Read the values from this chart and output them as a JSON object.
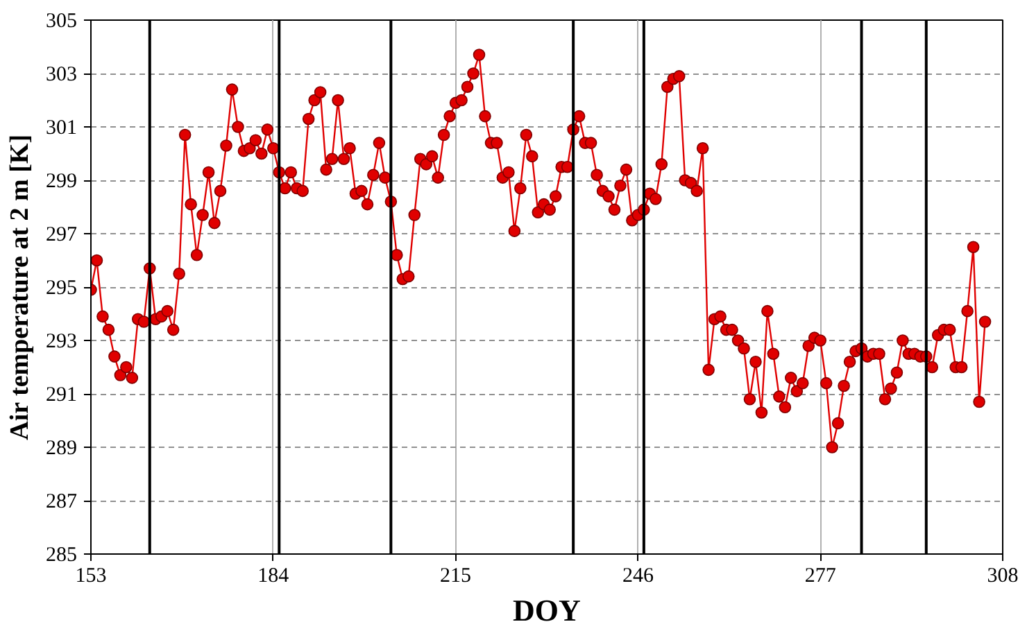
{
  "chart_data": {
    "type": "line",
    "xlabel": "DOY",
    "ylabel": "Air temperature at 2 m [K]",
    "x": [
      153,
      154,
      155,
      156,
      157,
      158,
      159,
      160,
      161,
      162,
      163,
      164,
      165,
      166,
      167,
      168,
      169,
      170,
      171,
      172,
      173,
      174,
      175,
      176,
      177,
      178,
      179,
      180,
      181,
      182,
      183,
      184,
      185,
      186,
      187,
      188,
      189,
      190,
      191,
      192,
      193,
      194,
      195,
      196,
      197,
      198,
      199,
      200,
      201,
      202,
      203,
      204,
      205,
      206,
      207,
      208,
      209,
      210,
      211,
      212,
      213,
      214,
      215,
      216,
      217,
      218,
      219,
      220,
      221,
      222,
      223,
      224,
      225,
      226,
      227,
      228,
      229,
      230,
      231,
      232,
      233,
      234,
      235,
      236,
      237,
      238,
      239,
      240,
      241,
      242,
      243,
      244,
      245,
      246,
      247,
      248,
      249,
      250,
      251,
      252,
      253,
      254,
      255,
      256,
      257,
      258,
      259,
      260,
      261,
      262,
      263,
      264,
      265,
      266,
      267,
      268,
      269,
      270,
      271,
      272,
      273,
      274,
      275,
      276,
      277,
      278,
      279,
      280,
      281,
      282,
      283,
      284,
      285,
      286,
      287,
      288,
      289,
      290,
      291,
      292,
      293,
      294,
      295,
      296,
      297,
      298,
      299,
      300,
      301,
      302,
      303,
      304,
      305
    ],
    "series": [
      {
        "color": "#e00000",
        "values": [
          294.9,
          296.0,
          293.9,
          293.4,
          292.4,
          291.7,
          292.0,
          291.6,
          293.8,
          293.7,
          295.7,
          293.8,
          293.9,
          294.1,
          293.4,
          295.5,
          300.7,
          298.1,
          296.2,
          297.7,
          299.3,
          297.4,
          298.6,
          300.3,
          302.4,
          301.0,
          300.1,
          300.2,
          300.5,
          300.0,
          300.9,
          300.2,
          299.3,
          298.7,
          299.3,
          298.7,
          298.6,
          301.3,
          302.0,
          302.3,
          299.4,
          299.8,
          302.0,
          299.8,
          300.2,
          298.5,
          298.6,
          298.1,
          299.2,
          300.4,
          299.1,
          298.2,
          296.2,
          295.3,
          295.4,
          297.7,
          299.8,
          299.6,
          299.9,
          299.1,
          300.7,
          301.4,
          301.9,
          302.0,
          302.5,
          303.0,
          303.7,
          301.4,
          300.4,
          300.4,
          299.1,
          299.3,
          297.1,
          298.7,
          300.7,
          299.9,
          297.8,
          298.1,
          297.9,
          298.4,
          299.5,
          299.5,
          300.9,
          301.4,
          300.4,
          300.4,
          299.2,
          298.6,
          298.4,
          297.9,
          298.8,
          299.4,
          297.5,
          297.7,
          297.9,
          298.5,
          298.3,
          299.6,
          302.5,
          302.8,
          302.9,
          299.0,
          298.9,
          298.6,
          300.2,
          291.9,
          293.8,
          293.9,
          293.4,
          293.4,
          293.0,
          292.7,
          290.8,
          292.2,
          290.3,
          294.1,
          292.5,
          290.9,
          290.5,
          291.6,
          291.1,
          291.4,
          292.8,
          293.1,
          293.0,
          291.4,
          289.0,
          289.9,
          291.3,
          292.2,
          292.6,
          292.7,
          292.4,
          292.5,
          292.5,
          290.8,
          291.2,
          291.8,
          293.0,
          292.5,
          292.5,
          292.4,
          292.4,
          292.0,
          293.2,
          293.4,
          293.4,
          292.0,
          292.0,
          294.1,
          296.5,
          290.7,
          293.7
        ]
      }
    ],
    "xlim": [
      153,
      308
    ],
    "xticks": [
      153,
      184,
      215,
      246,
      277,
      308
    ],
    "ylim": [
      285,
      305
    ],
    "yticks": [
      285,
      287,
      289,
      291,
      293,
      295,
      297,
      299,
      301,
      303,
      305
    ],
    "ref_lines": [
      {
        "axis": "x",
        "value": 163,
        "color": "#000000"
      },
      {
        "axis": "x",
        "value": 185,
        "color": "#000000"
      },
      {
        "axis": "x",
        "value": 204,
        "color": "#000000"
      },
      {
        "axis": "x",
        "value": 235,
        "color": "#000000"
      },
      {
        "axis": "x",
        "value": 247,
        "color": "#000000"
      },
      {
        "axis": "x",
        "value": 284,
        "color": "#000000"
      },
      {
        "axis": "x",
        "value": 295,
        "color": "#000000"
      }
    ],
    "grid": true,
    "marker": "circle",
    "line_style": "solid"
  }
}
